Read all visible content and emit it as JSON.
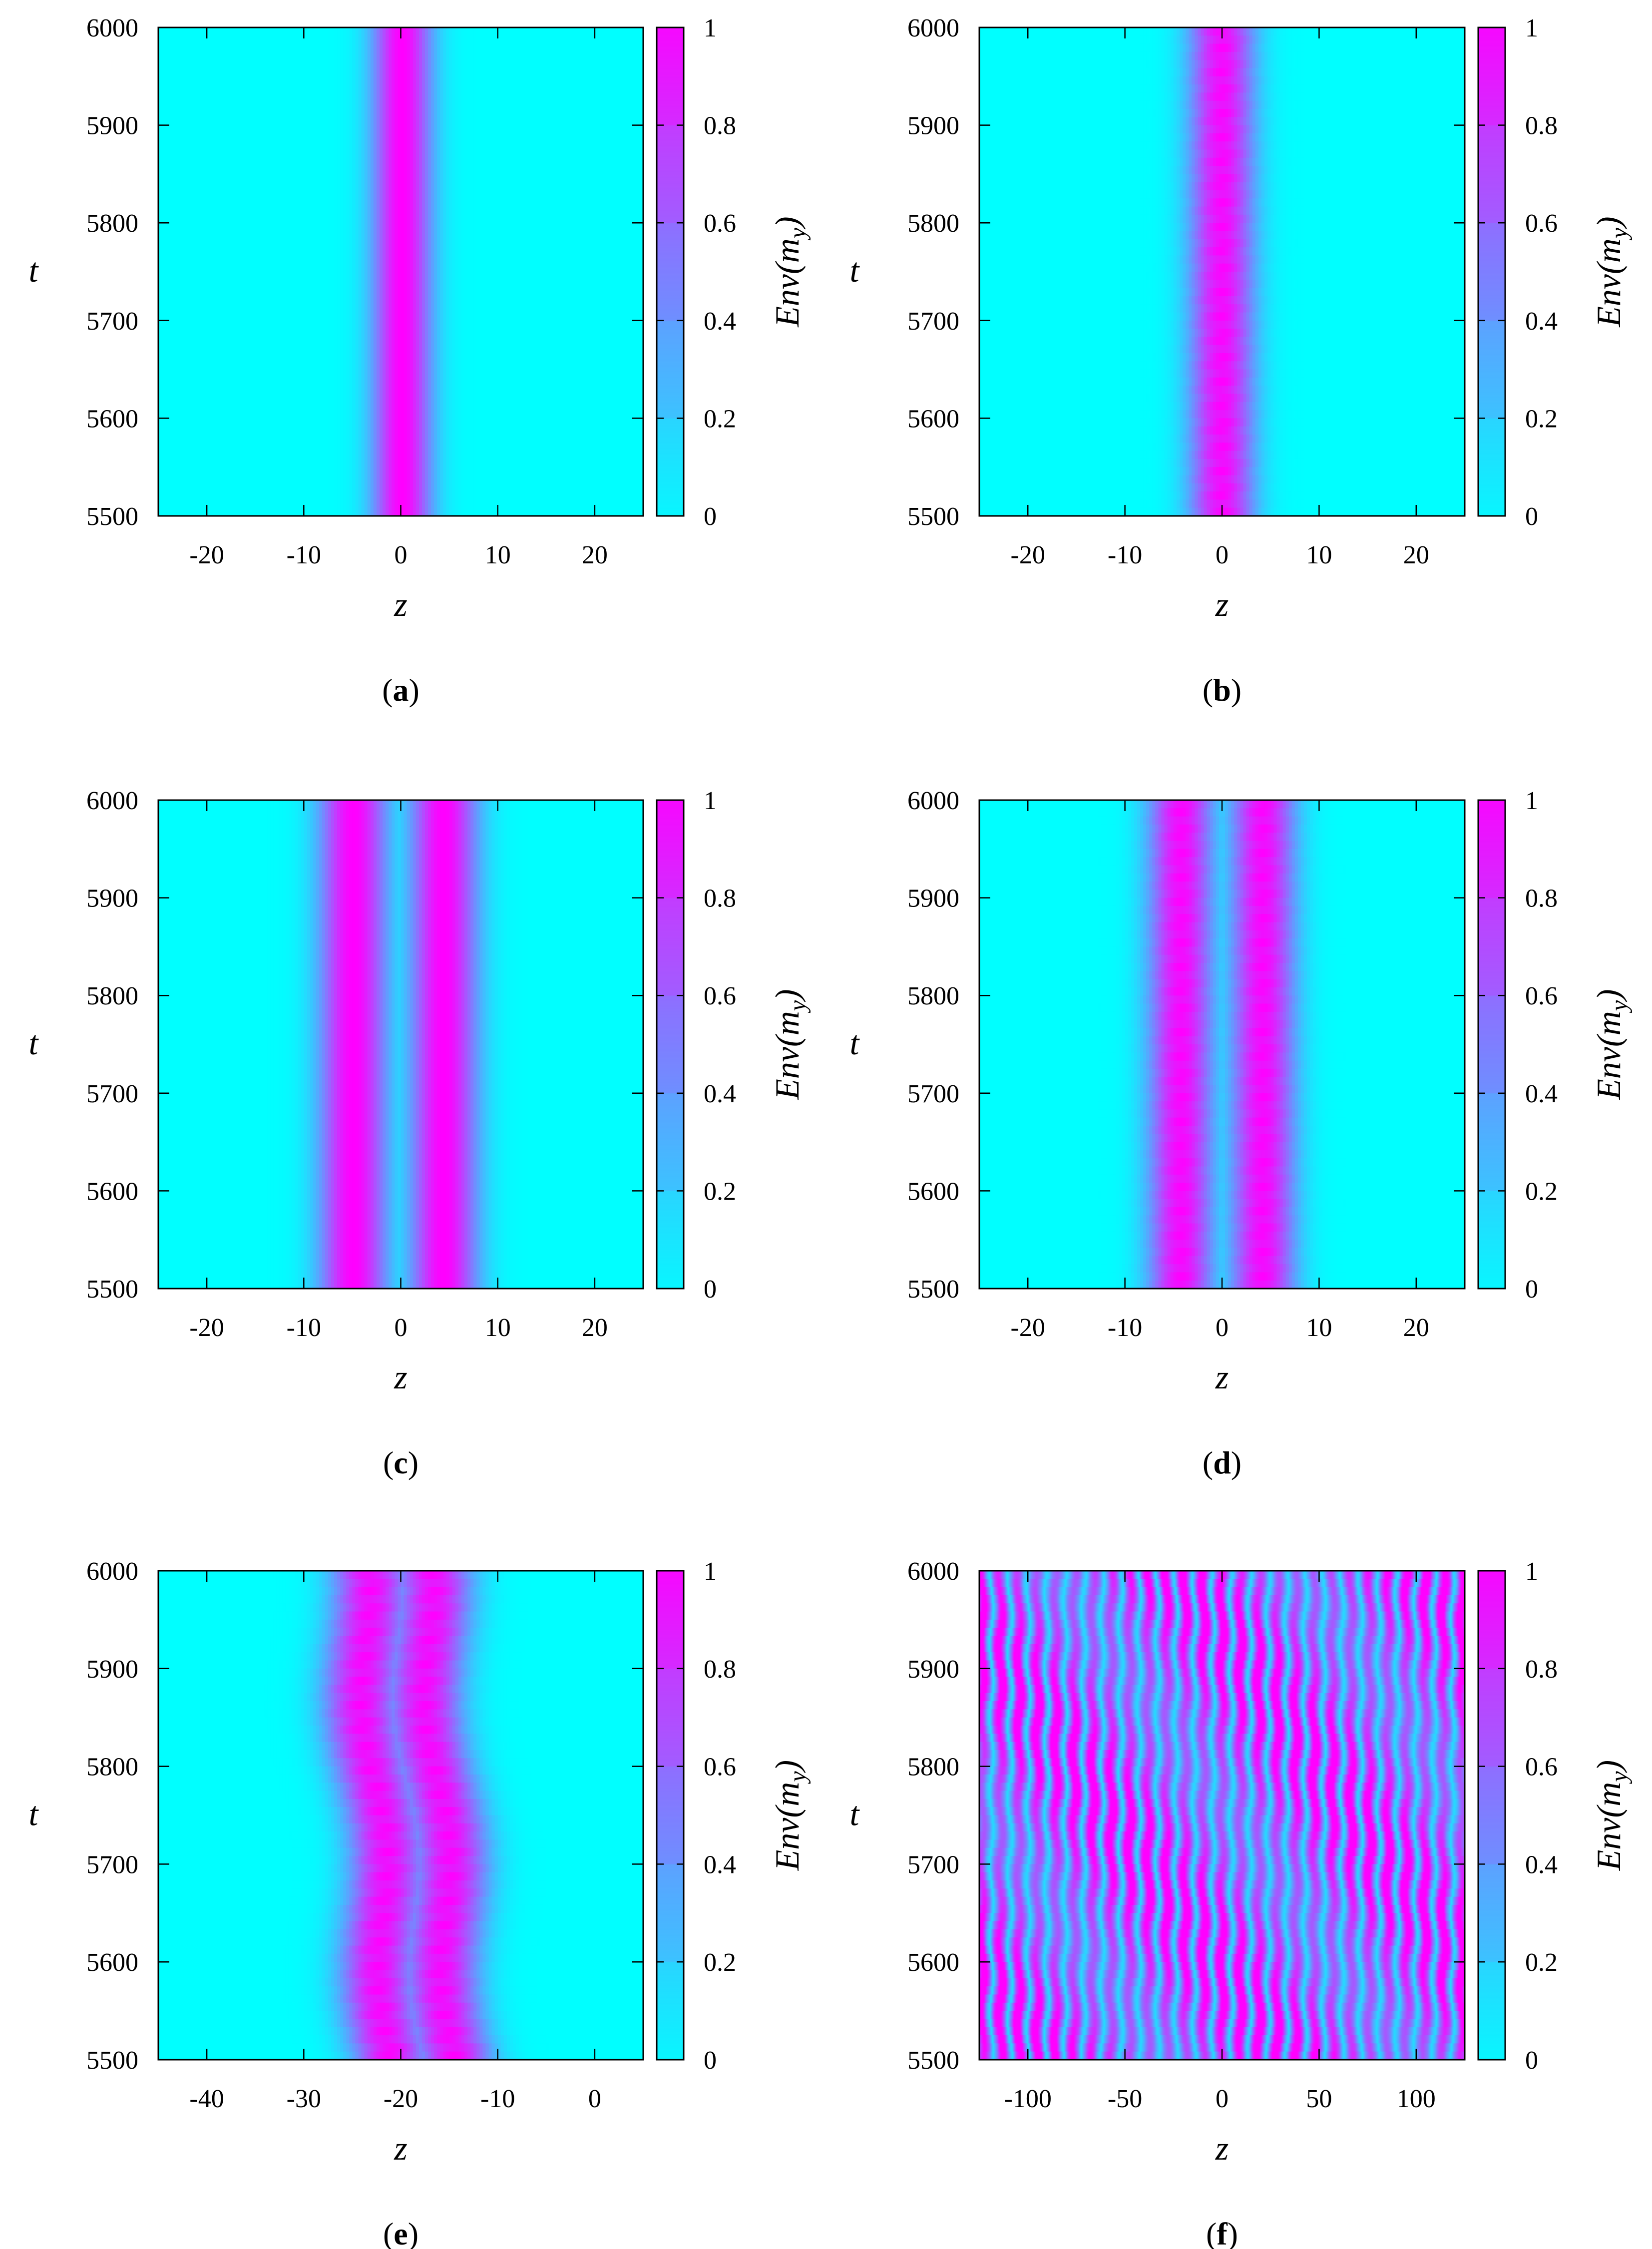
{
  "figure": {
    "colormap": {
      "low": "#00ffff",
      "mid": "#7f7fff",
      "high": "#ff00ff"
    },
    "colorbar_label_text": "Env(m",
    "colorbar_label_sub": "y",
    "colorbar_label_close": ")",
    "colorbar_ticks": [
      "0",
      "0.2",
      "0.4",
      "0.6",
      "0.8",
      "1"
    ]
  },
  "chart_data": [
    {
      "type": "heatmap",
      "panel": "a",
      "caption_letter": "a",
      "xlabel": "z",
      "ylabel": "t",
      "xlim": [
        -25,
        25
      ],
      "ylim": [
        5500,
        6000
      ],
      "xticks": [
        -20,
        -10,
        0,
        10,
        20
      ],
      "yticks": [
        5500,
        5600,
        5700,
        5800,
        5900,
        6000
      ],
      "zlim": [
        0,
        1
      ],
      "pattern": "single-band",
      "bands": [
        {
          "center": 0,
          "width": 2.2
        }
      ],
      "drift": 0.5,
      "ripple": 0
    },
    {
      "type": "heatmap",
      "panel": "b",
      "caption_letter": "b",
      "xlabel": "z",
      "ylabel": "t",
      "xlim": [
        -25,
        25
      ],
      "ylim": [
        5500,
        6000
      ],
      "xticks": [
        -20,
        -10,
        0,
        10,
        20
      ],
      "yticks": [
        5500,
        5600,
        5700,
        5800,
        5900,
        6000
      ],
      "zlim": [
        0,
        1
      ],
      "pattern": "single-band",
      "bands": [
        {
          "center": 0,
          "width": 2.4
        }
      ],
      "drift": 0,
      "ripple": 0.35
    },
    {
      "type": "heatmap",
      "panel": "c",
      "caption_letter": "c",
      "xlabel": "z",
      "ylabel": "t",
      "xlim": [
        -25,
        25
      ],
      "ylim": [
        5500,
        6000
      ],
      "xticks": [
        -20,
        -10,
        0,
        10,
        20
      ],
      "yticks": [
        5500,
        5600,
        5700,
        5800,
        5900,
        6000
      ],
      "zlim": [
        0,
        1
      ],
      "pattern": "double-band",
      "bands": [
        {
          "center": -5,
          "width": 2.5
        },
        {
          "center": 4.3,
          "width": 2.5
        }
      ],
      "drift": 0.5,
      "ripple": 0
    },
    {
      "type": "heatmap",
      "panel": "d",
      "caption_letter": "d",
      "xlabel": "z",
      "ylabel": "t",
      "xlim": [
        -25,
        25
      ],
      "ylim": [
        5500,
        6000
      ],
      "xticks": [
        -20,
        -10,
        0,
        10,
        20
      ],
      "yticks": [
        5500,
        5600,
        5700,
        5800,
        5900,
        6000
      ],
      "zlim": [
        0,
        1
      ],
      "pattern": "double-band",
      "bands": [
        {
          "center": -4.2,
          "width": 2.4
        },
        {
          "center": 4.2,
          "width": 2.4
        }
      ],
      "drift": 0,
      "ripple": 0.3
    },
    {
      "type": "heatmap",
      "panel": "e",
      "caption_letter": "e",
      "xlabel": "z",
      "ylabel": "t",
      "xlim": [
        -45,
        5
      ],
      "ylim": [
        5500,
        6000
      ],
      "xticks": [
        -40,
        -30,
        -20,
        -10,
        0
      ],
      "yticks": [
        5500,
        5600,
        5700,
        5800,
        5900,
        6000
      ],
      "zlim": [
        0,
        1
      ],
      "pattern": "drifting-double-band",
      "bands": [
        {
          "center": -21,
          "width": 2.8
        },
        {
          "center": -14.5,
          "width": 2.8
        }
      ],
      "drift": -3,
      "ripple": 0.4
    },
    {
      "type": "heatmap",
      "panel": "f",
      "caption_letter": "f",
      "xlabel": "z",
      "ylabel": "t",
      "xlim": [
        -125,
        125
      ],
      "ylim": [
        5500,
        6000
      ],
      "xticks": [
        -100,
        -50,
        0,
        50,
        100
      ],
      "yticks": [
        5500,
        5600,
        5700,
        5800,
        5900,
        6000
      ],
      "zlim": [
        0,
        1
      ],
      "pattern": "stripes",
      "stripe_period": 9.5,
      "bands": [],
      "drift": 0,
      "ripple": 0.6
    }
  ]
}
